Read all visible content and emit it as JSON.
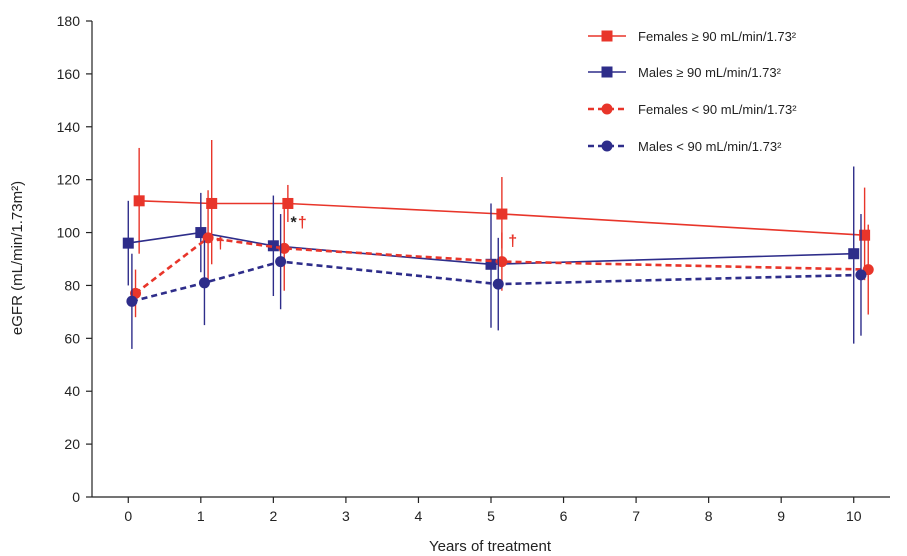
{
  "chart_data": {
    "type": "line",
    "xlabel": "Years of treatment",
    "ylabel": "eGFR (mL/min/1.73m²)",
    "xlim": [
      -0.5,
      10.5
    ],
    "ylim": [
      0,
      180
    ],
    "x_ticks": [
      "0",
      "1",
      "2",
      "3",
      "4",
      "5",
      "6",
      "7",
      "8",
      "9",
      "10"
    ],
    "y_ticks": [
      "0",
      "20",
      "40",
      "60",
      "80",
      "100",
      "120",
      "140",
      "160",
      "180"
    ],
    "grid": false,
    "legend_position": "top-right",
    "series": [
      {
        "name": "Females ≥ 90 mL/min/1.73²",
        "color": "#e8352a",
        "marker": "square",
        "dashed": false,
        "x": [
          0.15,
          1.15,
          2.2,
          5.15,
          10.15
        ],
        "y": [
          112,
          111,
          111,
          107,
          99
        ],
        "err_low": [
          92,
          88,
          104,
          94,
          82
        ],
        "err_high": [
          132,
          135,
          118,
          121,
          117
        ]
      },
      {
        "name": "Males ≥ 90 mL/min/1.73²",
        "color": "#2e2d8a",
        "marker": "square",
        "dashed": false,
        "x": [
          0,
          1,
          2,
          5,
          10
        ],
        "y": [
          96,
          100,
          95,
          88,
          92
        ],
        "err_low": [
          80,
          85,
          76,
          64,
          58
        ],
        "err_high": [
          112,
          115,
          114,
          111,
          125
        ]
      },
      {
        "name": "Females < 90 mL/min/1.73²",
        "color": "#e8352a",
        "marker": "circle",
        "dashed": true,
        "x": [
          0.1,
          1.1,
          2.15,
          5.15,
          10.2
        ],
        "y": [
          77,
          98,
          94,
          89,
          86
        ],
        "err_low": [
          68,
          82,
          78,
          78,
          69
        ],
        "err_high": [
          86,
          116,
          112,
          100,
          103
        ]
      },
      {
        "name": "Males < 90 mL/min/1.73²",
        "color": "#2e2d8a",
        "marker": "circle",
        "dashed": true,
        "x": [
          0.05,
          1.05,
          2.1,
          5.1,
          10.1
        ],
        "y": [
          74,
          81,
          89,
          80.5,
          84
        ],
        "err_low": [
          56,
          65,
          71,
          63,
          61
        ],
        "err_high": [
          92,
          97,
          107,
          98,
          107
        ]
      }
    ],
    "annotations": [
      {
        "text": "†",
        "x": 1.27,
        "y": 94,
        "color": "#e8352a"
      },
      {
        "text": "*",
        "x": 2.28,
        "y": 102,
        "color": "#222222"
      },
      {
        "text": "†",
        "x": 2.4,
        "y": 102,
        "color": "#e8352a"
      },
      {
        "text": "†",
        "x": 5.3,
        "y": 95,
        "color": "#e8352a"
      }
    ]
  }
}
